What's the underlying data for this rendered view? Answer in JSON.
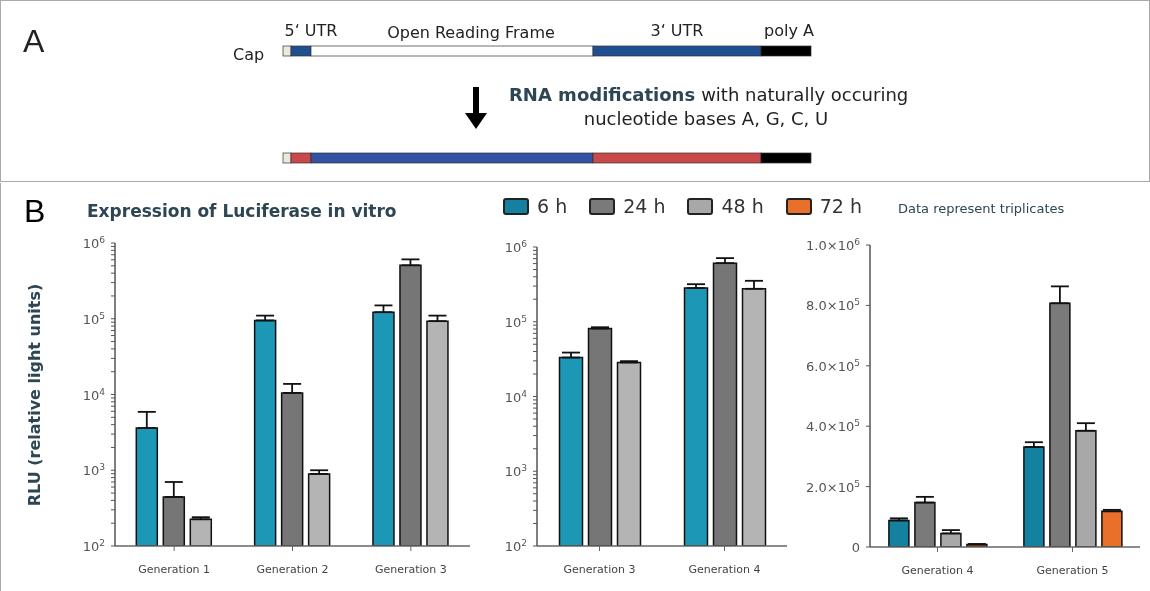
{
  "chart_data": [
    {
      "type": "other",
      "annotations": [
        "A",
        "Cap",
        "5‘ UTR",
        "Open Reading Frame",
        "3‘ UTR",
        "poly A",
        "RNA modifications",
        "with naturally occuring",
        "nucleotide bases A, G, C, U"
      ]
    },
    {
      "type": "bar",
      "title": "Expression of Luciferase in vitro",
      "ylabel": "RLU (relative light units)",
      "annotations": [
        "B"
      ],
      "categories": [
        "Generation 1",
        "Generation 2",
        "Generation 3"
      ],
      "log": true,
      "ylim": [
        100,
        1000000
      ],
      "yticks": [
        {
          "value": 100,
          "label": "10$^{2}$"
        },
        {
          "value": 200,
          "label": null
        },
        {
          "value": 300,
          "label": null
        },
        {
          "value": 400,
          "label": null
        },
        {
          "value": 500,
          "label": null
        },
        {
          "value": 600,
          "label": null
        },
        {
          "value": 700,
          "label": null
        },
        {
          "value": 800,
          "label": null
        },
        {
          "value": 900,
          "label": null
        },
        {
          "value": 1000,
          "label": "10$^{3}$"
        },
        {
          "value": 2000,
          "label": null
        },
        {
          "value": 3000,
          "label": null
        },
        {
          "value": 4000,
          "label": null
        },
        {
          "value": 5000,
          "label": null
        },
        {
          "value": 6000,
          "label": null
        },
        {
          "value": 7000,
          "label": null
        },
        {
          "value": 8000,
          "label": null
        },
        {
          "value": 9000,
          "label": null
        },
        {
          "value": 10000,
          "label": "10$^{4}$"
        },
        {
          "value": 20000,
          "label": null
        },
        {
          "value": 30000,
          "label": null
        },
        {
          "value": 40000,
          "label": null
        },
        {
          "value": 50000,
          "label": null
        },
        {
          "value": 60000,
          "label": null
        },
        {
          "value": 70000,
          "label": null
        },
        {
          "value": 80000,
          "label": null
        },
        {
          "value": 90000,
          "label": null
        },
        {
          "value": 100000,
          "label": "10$^{5}$"
        },
        {
          "value": 200000,
          "label": null
        },
        {
          "value": 300000,
          "label": null
        },
        {
          "value": 400000,
          "label": null
        },
        {
          "value": 500000,
          "label": null
        },
        {
          "value": 600000,
          "label": null
        },
        {
          "value": 700000,
          "label": null
        },
        {
          "value": 800000,
          "label": null
        },
        {
          "value": 900000,
          "label": null
        },
        {
          "value": 1000000,
          "label": "10$^{6}$"
        }
      ],
      "series": [
        {
          "color": "#1c97b6",
          "values": [
            3600,
            95000,
            122000
          ],
          "errors": [
            [
              3600,
              5900
            ],
            [
              95000,
              110000
            ],
            [
              122000,
              150000
            ]
          ]
        },
        {
          "color": "#767676",
          "values": [
            445,
            10500,
            507000
          ],
          "errors": [
            [
              445,
              700
            ],
            [
              10500,
              13800
            ],
            [
              507000,
              608000
            ]
          ]
        },
        {
          "color": "#b4b4b4",
          "values": [
            225,
            895,
            93000
          ],
          "errors": [
            [
              225,
              240
            ],
            [
              895,
              1000
            ],
            [
              93000,
              110000
            ]
          ]
        }
      ]
    },
    {
      "type": "bar",
      "categories": [
        "Generation 3",
        "Generation 4"
      ],
      "log": true,
      "ylim": [
        100,
        1000000
      ],
      "yticks": [
        {
          "value": 100,
          "label": "10$^{2}$"
        },
        {
          "value": 200,
          "label": null
        },
        {
          "value": 300,
          "label": null
        },
        {
          "value": 400,
          "label": null
        },
        {
          "value": 500,
          "label": null
        },
        {
          "value": 600,
          "label": null
        },
        {
          "value": 700,
          "label": null
        },
        {
          "value": 800,
          "label": null
        },
        {
          "value": 900,
          "label": null
        },
        {
          "value": 1000,
          "label": "10$^{3}$"
        },
        {
          "value": 2000,
          "label": null
        },
        {
          "value": 3000,
          "label": null
        },
        {
          "value": 4000,
          "label": null
        },
        {
          "value": 5000,
          "label": null
        },
        {
          "value": 6000,
          "label": null
        },
        {
          "value": 7000,
          "label": null
        },
        {
          "value": 8000,
          "label": null
        },
        {
          "value": 9000,
          "label": null
        },
        {
          "value": 10000,
          "label": "10$^{4}$"
        },
        {
          "value": 20000,
          "label": null
        },
        {
          "value": 30000,
          "label": null
        },
        {
          "value": 40000,
          "label": null
        },
        {
          "value": 50000,
          "label": null
        },
        {
          "value": 60000,
          "label": null
        },
        {
          "value": 70000,
          "label": null
        },
        {
          "value": 80000,
          "label": null
        },
        {
          "value": 90000,
          "label": null
        },
        {
          "value": 100000,
          "label": "10$^{5}$"
        },
        {
          "value": 200000,
          "label": null
        },
        {
          "value": 300000,
          "label": null
        },
        {
          "value": 400000,
          "label": null
        },
        {
          "value": 500000,
          "label": null
        },
        {
          "value": 600000,
          "label": null
        },
        {
          "value": 700000,
          "label": null
        },
        {
          "value": 800000,
          "label": null
        },
        {
          "value": 900000,
          "label": null
        },
        {
          "value": 1000000,
          "label": "10$^{6}$"
        }
      ],
      "series": [
        {
          "color": "#1c97b6",
          "values": [
            33200,
            282000
          ],
          "errors": [
            [
              33200,
              38700
            ],
            [
              282000,
              318000
            ]
          ]
        },
        {
          "color": "#767676",
          "values": [
            81000,
            608000
          ],
          "errors": [
            [
              81000,
              84400
            ],
            [
              608000,
              710000
            ]
          ]
        },
        {
          "color": "#b4b4b4",
          "values": [
            28500,
            276000
          ],
          "errors": [
            [
              28500,
              29700
            ],
            [
              276000,
              353000
            ]
          ]
        }
      ]
    },
    {
      "type": "bar",
      "annotations": [
        "Data represent triplicates"
      ],
      "legend": "top",
      "categories": [
        "Generation 4",
        "Generation 5"
      ],
      "ylim": [
        0,
        1000000
      ],
      "yticks": [
        0,
        {
          "value": 200000,
          "label": "2.0×10$^{5}$"
        },
        {
          "value": 400000,
          "label": "4.0×10$^{5}$"
        },
        {
          "value": 600000,
          "label": "6.0×10$^{5}$"
        },
        {
          "value": 800000,
          "label": "8.0×10$^{5}$"
        },
        {
          "value": 1000000,
          "label": "1.0×10$^{6}$"
        }
      ],
      "series": [
        {
          "name": "6 h",
          "color": "#13819f",
          "values": [
            88000,
            331000
          ],
          "errors": [
            [
              88000,
              95000
            ],
            [
              331000,
              347000
            ]
          ]
        },
        {
          "name": "24 h",
          "color": "#7a7a7a",
          "values": [
            147000,
            807000
          ],
          "errors": [
            [
              147000,
              166000
            ],
            [
              807000,
              863000
            ]
          ]
        },
        {
          "name": "48 h",
          "color": "#a8a8a8",
          "values": [
            45000,
            385000
          ],
          "errors": [
            [
              45000,
              56000
            ],
            [
              385000,
              410000
            ]
          ]
        },
        {
          "name": "72 h",
          "color": "#e8702a",
          "values": [
            8000,
            118000
          ],
          "errors": [
            [
              8000,
              10000
            ],
            [
              118000,
              123000
            ]
          ]
        }
      ]
    }
  ]
}
